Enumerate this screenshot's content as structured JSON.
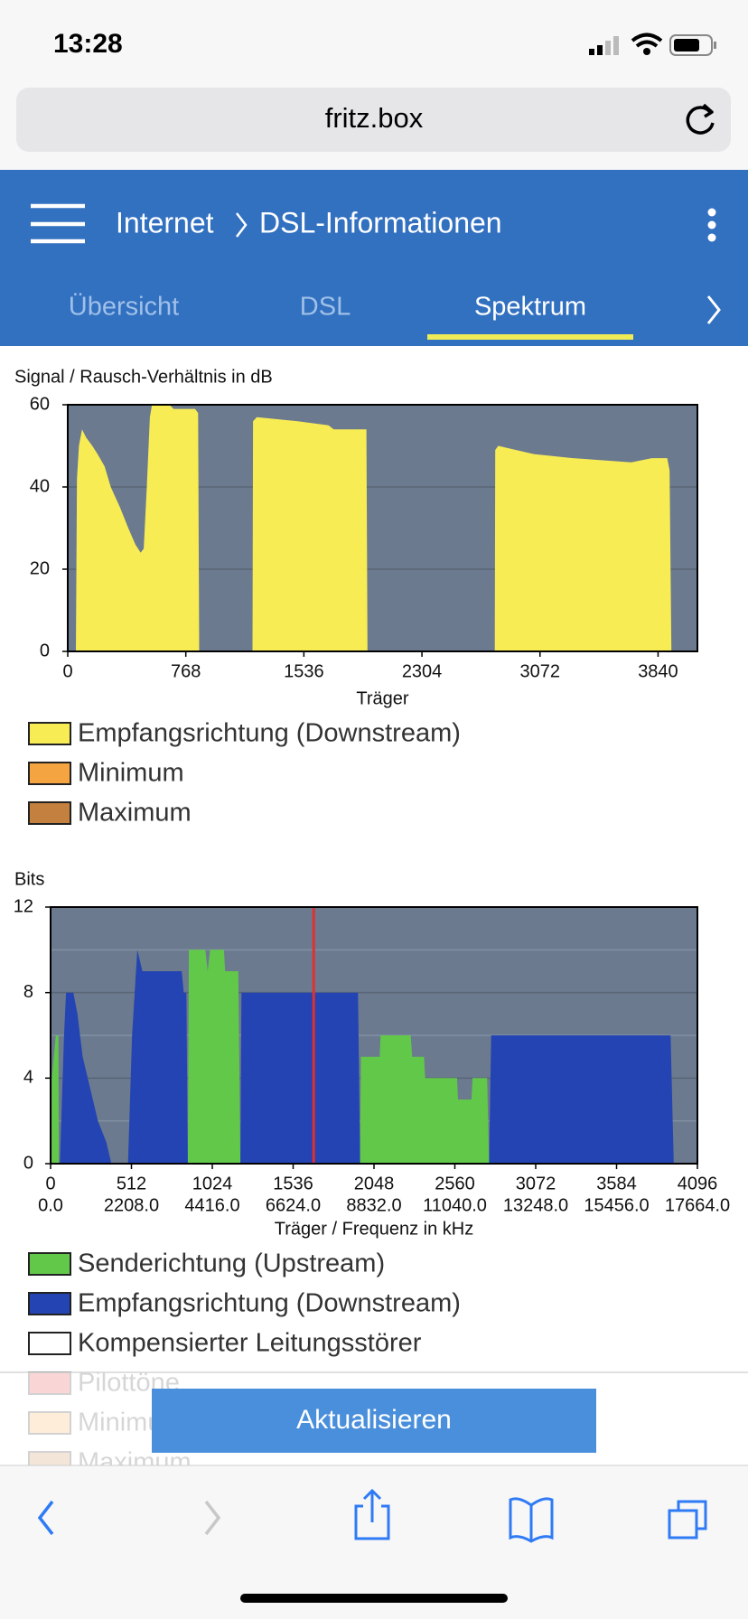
{
  "status_bar": {
    "time": "13:28"
  },
  "browser": {
    "url": "fritz.box"
  },
  "header": {
    "breadcrumb": [
      "Internet",
      "DSL-Informationen"
    ]
  },
  "tabs": [
    "Übersicht",
    "DSL",
    "Spektrum"
  ],
  "active_tab": 2,
  "chart_data": [
    {
      "type": "area",
      "title": "Signal / Rausch-Verhältnis in dB",
      "xlabel": "Träger",
      "xlim": [
        0,
        4096
      ],
      "ylim": [
        0,
        60
      ],
      "xticks": [
        0,
        768,
        1536,
        2304,
        3072,
        3840
      ],
      "yticks": [
        0,
        20,
        40,
        60
      ],
      "grid": true,
      "background": "#6b7a8f",
      "series": [
        {
          "name": "Empfangsrichtung (Downstream)",
          "color": "#f8ec55",
          "x": [
            53,
            60,
            73,
            93,
            120,
            160,
            194,
            240,
            280,
            340,
            394,
            440,
            474,
            494,
            514,
            534,
            548,
            661,
            688,
            828,
            848,
            855,
            null,
            1202,
            1205,
            1230,
            1496,
            1696,
            1730,
            1943,
            1950,
            null,
            2778,
            2781,
            2800,
            3032,
            3286,
            3666,
            3800,
            3900,
            3915,
            3927
          ],
          "values": [
            0,
            42,
            50,
            54,
            52,
            50,
            48,
            45,
            40,
            35,
            30,
            26,
            24,
            25,
            40,
            57,
            60,
            60,
            59,
            59,
            58,
            0,
            null,
            0,
            56,
            57,
            56,
            55,
            54,
            54,
            0,
            null,
            0,
            49,
            50,
            48,
            47,
            46,
            47,
            47,
            44,
            0
          ]
        },
        {
          "name": "Minimum",
          "color": "#f5a442"
        },
        {
          "name": "Maximum",
          "color": "#c4803f"
        }
      ]
    },
    {
      "type": "area",
      "title": "Bits",
      "xlabel": "Träger / Frequenz in kHz",
      "xlim": [
        0,
        4096
      ],
      "ylim": [
        0,
        12
      ],
      "xticks": [
        0,
        512,
        1024,
        1536,
        2048,
        2560,
        3072,
        3584,
        4096
      ],
      "x2lim": [
        0,
        17664
      ],
      "x2ticks": [
        {
          "value": 0,
          "label": "0.0"
        },
        {
          "value": 2208,
          "label": "2208.0"
        },
        {
          "value": 4416,
          "label": "4416.0"
        },
        {
          "value": 6624,
          "label": "6624.0"
        },
        {
          "value": 8832,
          "label": "8832.0"
        },
        {
          "value": 11040,
          "label": "11040.0"
        },
        {
          "value": 13248,
          "label": "13248.0"
        },
        {
          "value": 15456,
          "label": "15456.0"
        },
        {
          "value": 17664,
          "label": "17664.0"
        }
      ],
      "yticks": [
        0,
        4,
        8,
        12
      ],
      "yminor": [
        2,
        6,
        10
      ],
      "grid": true,
      "background": "#6b7a8f",
      "series": [
        {
          "name": "Senderichtung (Upstream)",
          "color": "#62c84a",
          "x": [
            7,
            8,
            33,
            50,
            52,
            null,
            869,
            876,
            980,
            995,
            1010,
            1040,
            1098,
            1105,
            1189,
            1202,
            null,
            1960,
            1965,
            2084,
            2090,
            2280,
            2290,
            2365,
            2372,
            2574,
            2580,
            2665,
            2672,
            2764,
            2777
          ],
          "values": [
            0,
            4,
            6,
            6,
            0,
            null,
            0,
            10,
            10,
            9,
            10,
            10,
            10,
            9,
            9,
            0,
            null,
            0,
            5,
            5,
            6,
            6,
            5,
            5,
            4,
            4,
            3,
            3,
            4,
            4,
            0
          ]
        },
        {
          "name": "Empfangsrichtung (Downstream)",
          "color": "#2344b2",
          "x": [
            59,
            85,
            98,
            144,
            170,
            203,
            235,
            300,
            353,
            385,
            null,
            490,
            516,
            549,
            581,
            830,
            843,
            860,
            869,
            null,
            1202,
            1209,
            1947,
            1960,
            null,
            2777,
            2790,
            3926,
            3946
          ],
          "values": [
            0,
            6,
            8,
            8,
            7,
            5,
            4,
            2,
            1,
            0,
            null,
            0,
            6,
            10,
            9,
            9,
            8,
            8,
            0,
            null,
            0,
            8,
            8,
            0,
            null,
            0,
            6,
            6,
            0
          ]
        },
        {
          "name": "Kompensierter Leitungsstörer",
          "color": "#ffffff"
        },
        {
          "name": "Pilottöne",
          "color": "#e03030",
          "style": "vline",
          "x": [
            1666
          ],
          "values": [
            12
          ]
        },
        {
          "name": "Minimum",
          "color": "#f5a442"
        },
        {
          "name": "Maximum",
          "color": "#c4803f"
        }
      ]
    }
  ],
  "button": "Aktualisieren"
}
